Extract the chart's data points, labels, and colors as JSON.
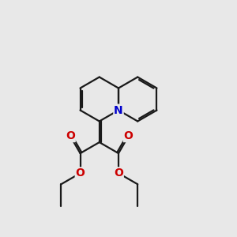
{
  "bg_color": "#e8e8e8",
  "bond_color": "#1a1a1a",
  "N_color": "#0000cc",
  "O_color": "#cc0000",
  "lw": 1.6,
  "dbo": 0.06,
  "fs": 10,
  "figsize": [
    3.0,
    3.0
  ],
  "dpi": 100,
  "BL": 0.8,
  "xlim": [
    1.5,
    8.5
  ],
  "ylim": [
    1.0,
    9.5
  ]
}
